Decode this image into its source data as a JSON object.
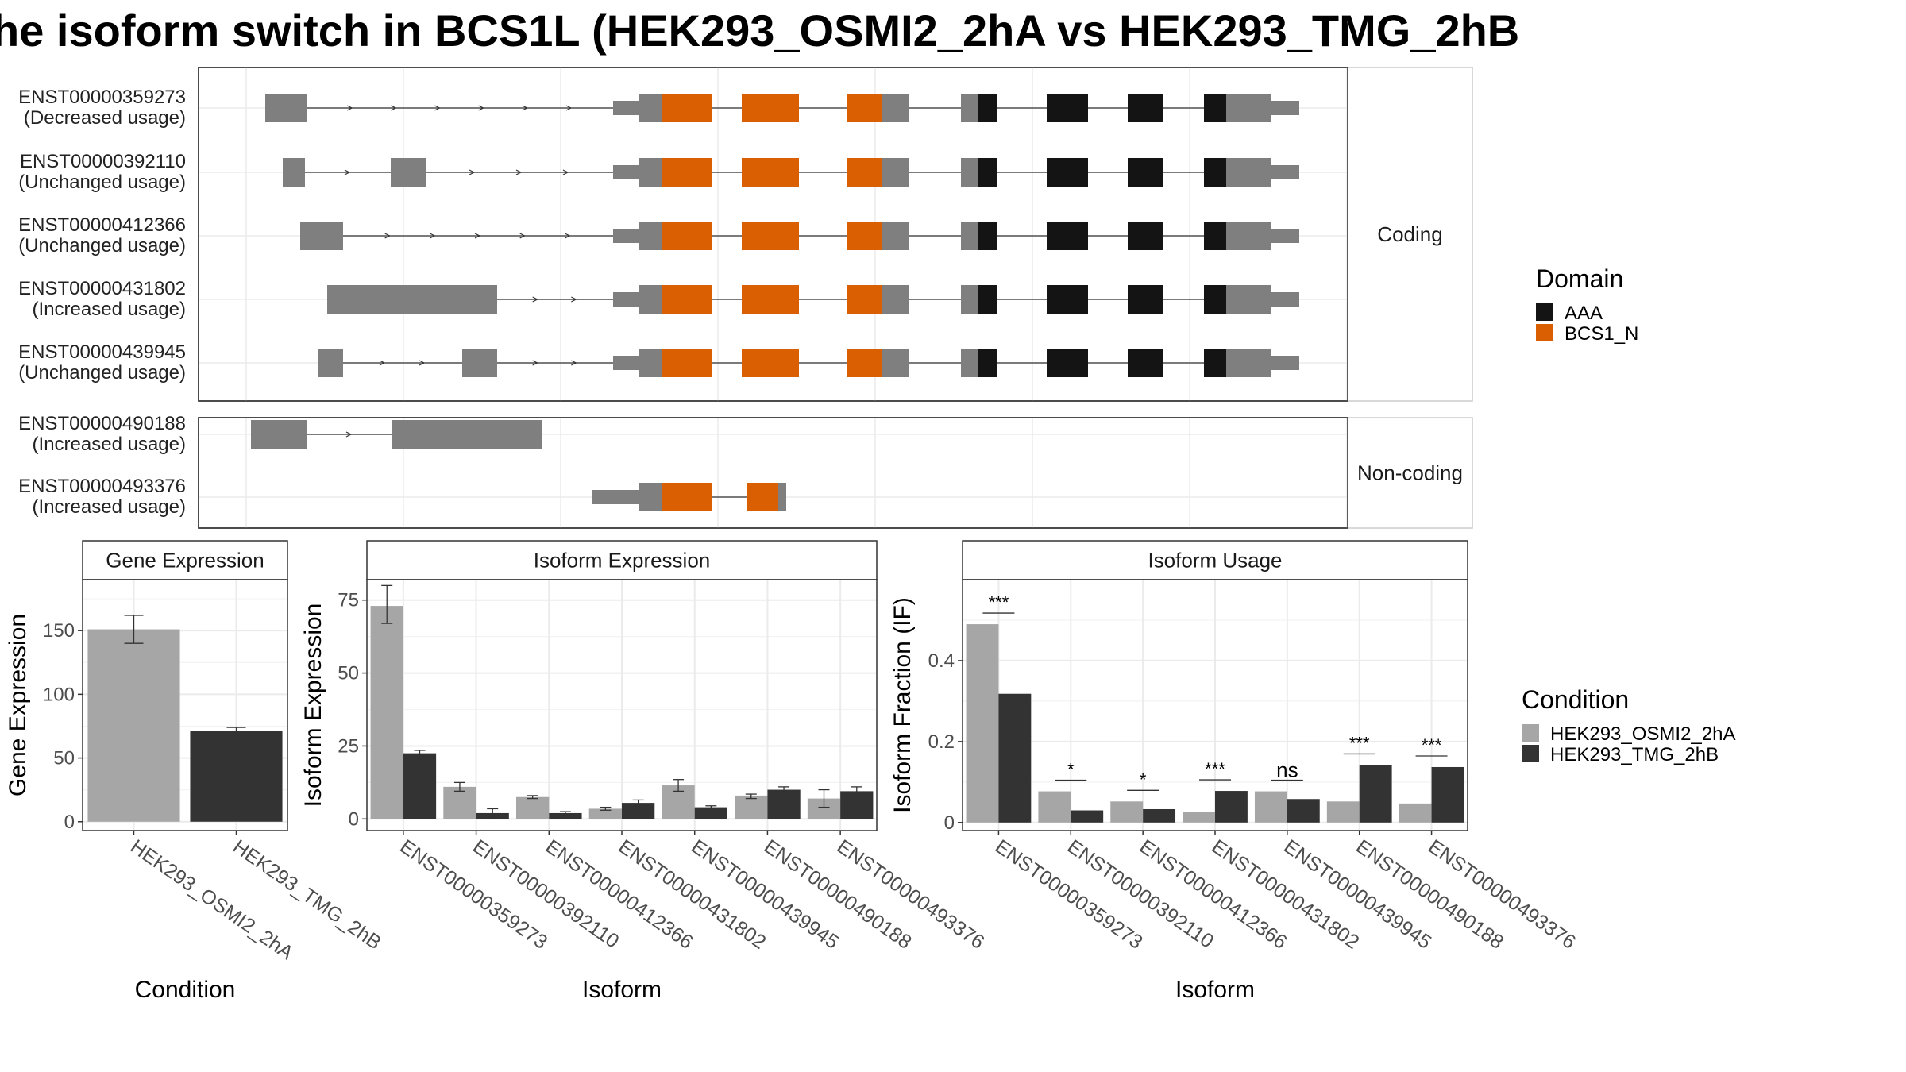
{
  "chart_data": [
    {
      "type": "transcript_structure",
      "title": "he isoform switch in BCS1L (HEK293_OSMI2_2hA vs HEK293_TMG_2hB",
      "facets": [
        {
          "name": "Coding",
          "transcripts": [
            {
              "id": "ENST00000359273",
              "usage": "(Decreased usage)"
            },
            {
              "id": "ENST00000392110",
              "usage": "(Unchanged usage)"
            },
            {
              "id": "ENST00000412366",
              "usage": "(Unchanged usage)"
            },
            {
              "id": "ENST00000431802",
              "usage": "(Increased usage)"
            },
            {
              "id": "ENST00000439945",
              "usage": "(Unchanged usage)"
            }
          ]
        },
        {
          "name": "Non-coding",
          "transcripts": [
            {
              "id": "ENST00000490188",
              "usage": "(Increased usage)"
            },
            {
              "id": "ENST00000493376",
              "usage": "(Increased usage)"
            }
          ]
        }
      ],
      "legend": {
        "title": "Domain",
        "items": [
          {
            "name": "AAA",
            "color": "#141414"
          },
          {
            "name": "BCS1_N",
            "color": "#d95f02"
          }
        ]
      }
    },
    {
      "type": "bar",
      "panel": "Gene Expression",
      "xlabel": "Condition",
      "ylabel": "Gene Expression",
      "categories": [
        "HEK293_OSMI2_2hA",
        "HEK293_TMG_2hB"
      ],
      "values": [
        151,
        71
      ],
      "errors": [
        [
          140,
          162
        ],
        [
          68,
          74
        ]
      ],
      "ylim": [
        -7,
        190
      ],
      "yticks": [
        0,
        50,
        100,
        150
      ]
    },
    {
      "type": "bar",
      "panel": "Isoform Expression",
      "xlabel": "Isoform",
      "ylabel": "Isoform Expression",
      "categories": [
        "ENST00000359273",
        "ENST00000392110",
        "ENST00000412366",
        "ENST00000431802",
        "ENST00000439945",
        "ENST00000490188",
        "ENST00000493376"
      ],
      "series": [
        {
          "name": "HEK293_OSMI2_2hA",
          "values": [
            73,
            11,
            7.5,
            3.5,
            11.5,
            8,
            7
          ],
          "errors": [
            [
              67,
              80
            ],
            [
              9.5,
              12.5
            ],
            [
              7,
              8
            ],
            [
              3,
              4
            ],
            [
              9.5,
              13.5
            ],
            [
              7,
              8.5
            ],
            [
              4,
              10
            ]
          ]
        },
        {
          "name": "HEK293_TMG_2hB",
          "values": [
            22.5,
            2,
            2,
            5.5,
            4,
            10,
            9.5
          ],
          "errors": [
            [
              21.5,
              23.5
            ],
            [
              0.5,
              3.5
            ],
            [
              1.5,
              2.5
            ],
            [
              4.5,
              6.5
            ],
            [
              3.5,
              4.5
            ],
            [
              9,
              11
            ],
            [
              8,
              11
            ]
          ]
        }
      ],
      "ylim": [
        -4,
        82
      ],
      "yticks": [
        0,
        25,
        50,
        75
      ]
    },
    {
      "type": "bar",
      "panel": "Isoform Usage",
      "xlabel": "Isoform",
      "ylabel": "Isoform Fraction (IF)",
      "categories": [
        "ENST00000359273",
        "ENST00000392110",
        "ENST00000412366",
        "ENST00000431802",
        "ENST00000439945",
        "ENST00000490188",
        "ENST00000493376"
      ],
      "series": [
        {
          "name": "HEK293_OSMI2_2hA",
          "values": [
            0.49,
            0.077,
            0.052,
            0.026,
            0.077,
            0.052,
            0.047
          ]
        },
        {
          "name": "HEK293_TMG_2hB",
          "values": [
            0.318,
            0.03,
            0.033,
            0.078,
            0.058,
            0.142,
            0.137
          ]
        }
      ],
      "significance": [
        "***",
        "*",
        "*",
        "***",
        "ns",
        "***",
        "***"
      ],
      "ylim": [
        -0.02,
        0.6
      ],
      "yticks": [
        0.0,
        0.2,
        0.4
      ]
    }
  ],
  "legends": {
    "domain": {
      "title": "Domain",
      "items": [
        {
          "name": "AAA",
          "color": "#141414"
        },
        {
          "name": "BCS1_N",
          "color": "#d95f02"
        }
      ]
    },
    "condition": {
      "title": "Condition",
      "items": [
        {
          "name": "HEK293_OSMI2_2hA",
          "color": "#a6a6a6"
        },
        {
          "name": "HEK293_TMG_2hB",
          "color": "#333333"
        }
      ]
    }
  },
  "colors": {
    "exon": "#7f7f7f",
    "aaa": "#141414",
    "bcs1n": "#d95f02",
    "cond_a": "#a6a6a6",
    "cond_b": "#333333"
  }
}
